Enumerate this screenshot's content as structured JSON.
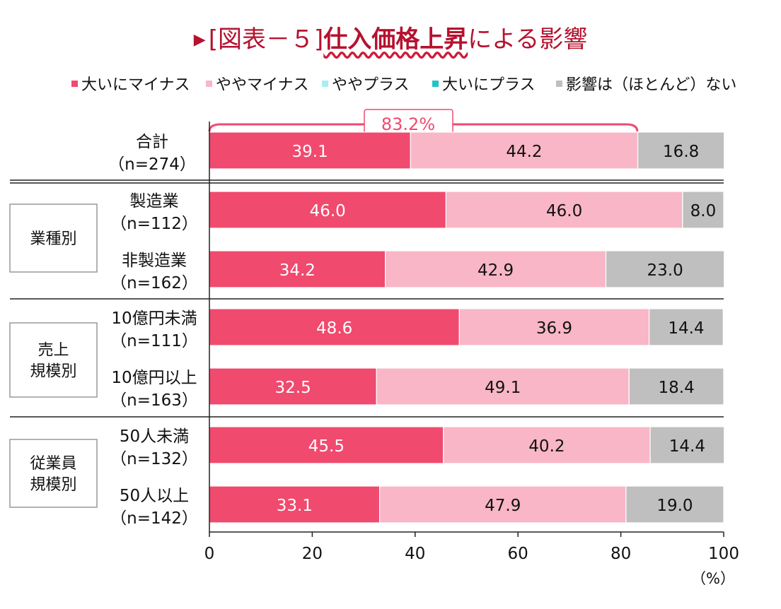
{
  "title": {
    "marker": "▶",
    "prefix": "[図表－５]",
    "emphasis": "仕入価格上昇",
    "suffix": "による影響"
  },
  "colors": {
    "title": "#b5122f",
    "very_negative": "#f04a6e",
    "somewhat_negative": "#f9b6c7",
    "somewhat_positive": "#a9eef0",
    "very_positive": "#23c4c8",
    "no_effect": "#bfbfbf",
    "bracket": "#f04a6e"
  },
  "chart_data": {
    "type": "bar",
    "orientation": "horizontal",
    "stacked": true,
    "xlim": [
      0,
      100
    ],
    "xticks": [
      "0",
      "20",
      "40",
      "60",
      "80",
      "100"
    ],
    "xunit": "（%）",
    "legend": [
      {
        "key": "very_negative",
        "label": "大いにマイナス"
      },
      {
        "key": "somewhat_negative",
        "label": "ややマイナス"
      },
      {
        "key": "somewhat_positive",
        "label": "ややプラス"
      },
      {
        "key": "very_positive",
        "label": "大いにプラス"
      },
      {
        "key": "no_effect",
        "label": "影響は（ほとんど）ない"
      }
    ],
    "categories": [
      {
        "line1": "合計",
        "line2": "（n=274）"
      },
      {
        "line1": "製造業",
        "line2": "（n=112）"
      },
      {
        "line1": "非製造業",
        "line2": "（n=162）"
      },
      {
        "line1": "10億円未満",
        "line2": "（n=111）"
      },
      {
        "line1": "10億円以上",
        "line2": "（n=163）"
      },
      {
        "line1": "50人未満",
        "line2": "（n=132）"
      },
      {
        "line1": "50人以上",
        "line2": "（n=142）"
      }
    ],
    "series": [
      {
        "key": "very_negative",
        "name": "大いにマイナス",
        "values": [
          39.1,
          46.0,
          34.2,
          48.6,
          32.5,
          45.5,
          33.1
        ]
      },
      {
        "key": "somewhat_negative",
        "name": "ややマイナス",
        "values": [
          44.2,
          46.0,
          42.9,
          36.9,
          49.1,
          40.2,
          47.9
        ]
      },
      {
        "key": "somewhat_positive",
        "name": "ややプラス",
        "values": [
          0,
          0,
          0,
          0,
          0,
          0,
          0
        ]
      },
      {
        "key": "very_positive",
        "name": "大いにプラス",
        "values": [
          0,
          0,
          0,
          0,
          0,
          0,
          0
        ]
      },
      {
        "key": "no_effect",
        "name": "影響は（ほとんど）ない",
        "values": [
          16.8,
          8.0,
          23.0,
          14.4,
          18.4,
          14.4,
          19.0
        ]
      }
    ],
    "value_labels": [
      [
        "39.1",
        "44.2",
        "16.8"
      ],
      [
        "46.0",
        "46.0",
        "8.0"
      ],
      [
        "34.2",
        "42.9",
        "23.0"
      ],
      [
        "48.6",
        "36.9",
        "14.4"
      ],
      [
        "32.5",
        "49.1",
        "18.4"
      ],
      [
        "45.5",
        "40.2",
        "14.4"
      ],
      [
        "33.1",
        "47.9",
        "19.0"
      ]
    ],
    "groups": [
      {
        "lines": [
          "業種別"
        ],
        "rows": [
          1,
          2
        ]
      },
      {
        "lines": [
          "売上",
          "規模別"
        ],
        "rows": [
          3,
          4
        ]
      },
      {
        "lines": [
          "従業員",
          "規模別"
        ],
        "rows": [
          5,
          6
        ]
      }
    ],
    "annotation": {
      "label": "83.2%",
      "row": 0,
      "value": 83.2
    }
  }
}
